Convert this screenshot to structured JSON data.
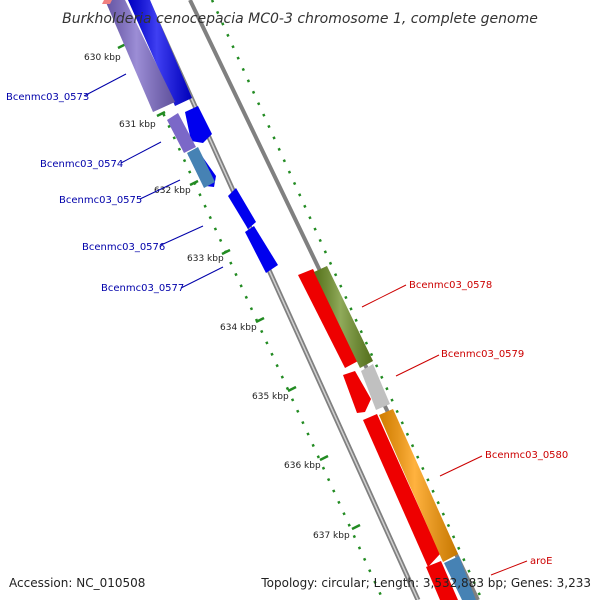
{
  "title": "Burkholderia cenocepacia MC0-3 chromosome 1, complete genome",
  "footer": {
    "accession": "Accession: NC_010508",
    "summary": "Topology: circular; Length: 3,532,883 bp; Genes: 3,233"
  },
  "scale_labels": [
    "630 kbp",
    "631 kbp",
    "632 kbp",
    "633 kbp",
    "634 kbp",
    "635 kbp",
    "636 kbp",
    "637 kbp"
  ],
  "genes_left": [
    "Bcenmc03_0573",
    "Bcenmc03_0574",
    "Bcenmc03_0575",
    "Bcenmc03_0576",
    "Bcenmc03_0577"
  ],
  "genes_right": [
    "Bcenmc03_0578",
    "Bcenmc03_0579",
    "Bcenmc03_0580",
    "aroE"
  ],
  "colors": {
    "forward_strand": "#0000ee",
    "reverse_strand": "#ee0000",
    "left_label": "#0000aa",
    "right_label": "#cc0000",
    "ticks": "#228b22",
    "backbone": "#808080",
    "cog_purple": "#7b68c8",
    "cog_steelblue": "#4682b4",
    "cog_olive": "#6b8e23",
    "cog_gray": "#c0c0c0",
    "cog_orange": "#ff9900"
  }
}
